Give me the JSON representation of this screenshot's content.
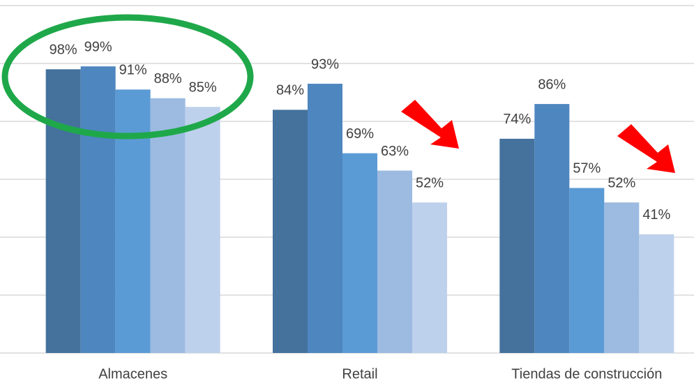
{
  "chart_data": {
    "type": "bar",
    "categories": [
      "Almacenes",
      "Retail",
      "Tiendas de construcción"
    ],
    "series": [
      {
        "color": "#44729d",
        "values": [
          98,
          84,
          74
        ],
        "value_labels": [
          "98%",
          "84%",
          "74%"
        ]
      },
      {
        "color": "#4e86bf",
        "values": [
          99,
          93,
          86
        ],
        "value_labels": [
          "99%",
          "93%",
          "86%"
        ]
      },
      {
        "color": "#5b9bd5",
        "values": [
          91,
          69,
          57
        ],
        "value_labels": [
          "91%",
          "69%",
          "57%"
        ]
      },
      {
        "color": "#9dbbe1",
        "values": [
          88,
          63,
          52
        ],
        "value_labels": [
          "88%",
          "63%",
          "52%"
        ]
      },
      {
        "color": "#bed1ec",
        "values": [
          85,
          52,
          41
        ],
        "value_labels": [
          "85%",
          "52%",
          "41%"
        ]
      }
    ],
    "ylim": [
      0,
      120
    ],
    "yticks": [
      0,
      20,
      40,
      60,
      80,
      100,
      120
    ],
    "grid": true
  }
}
